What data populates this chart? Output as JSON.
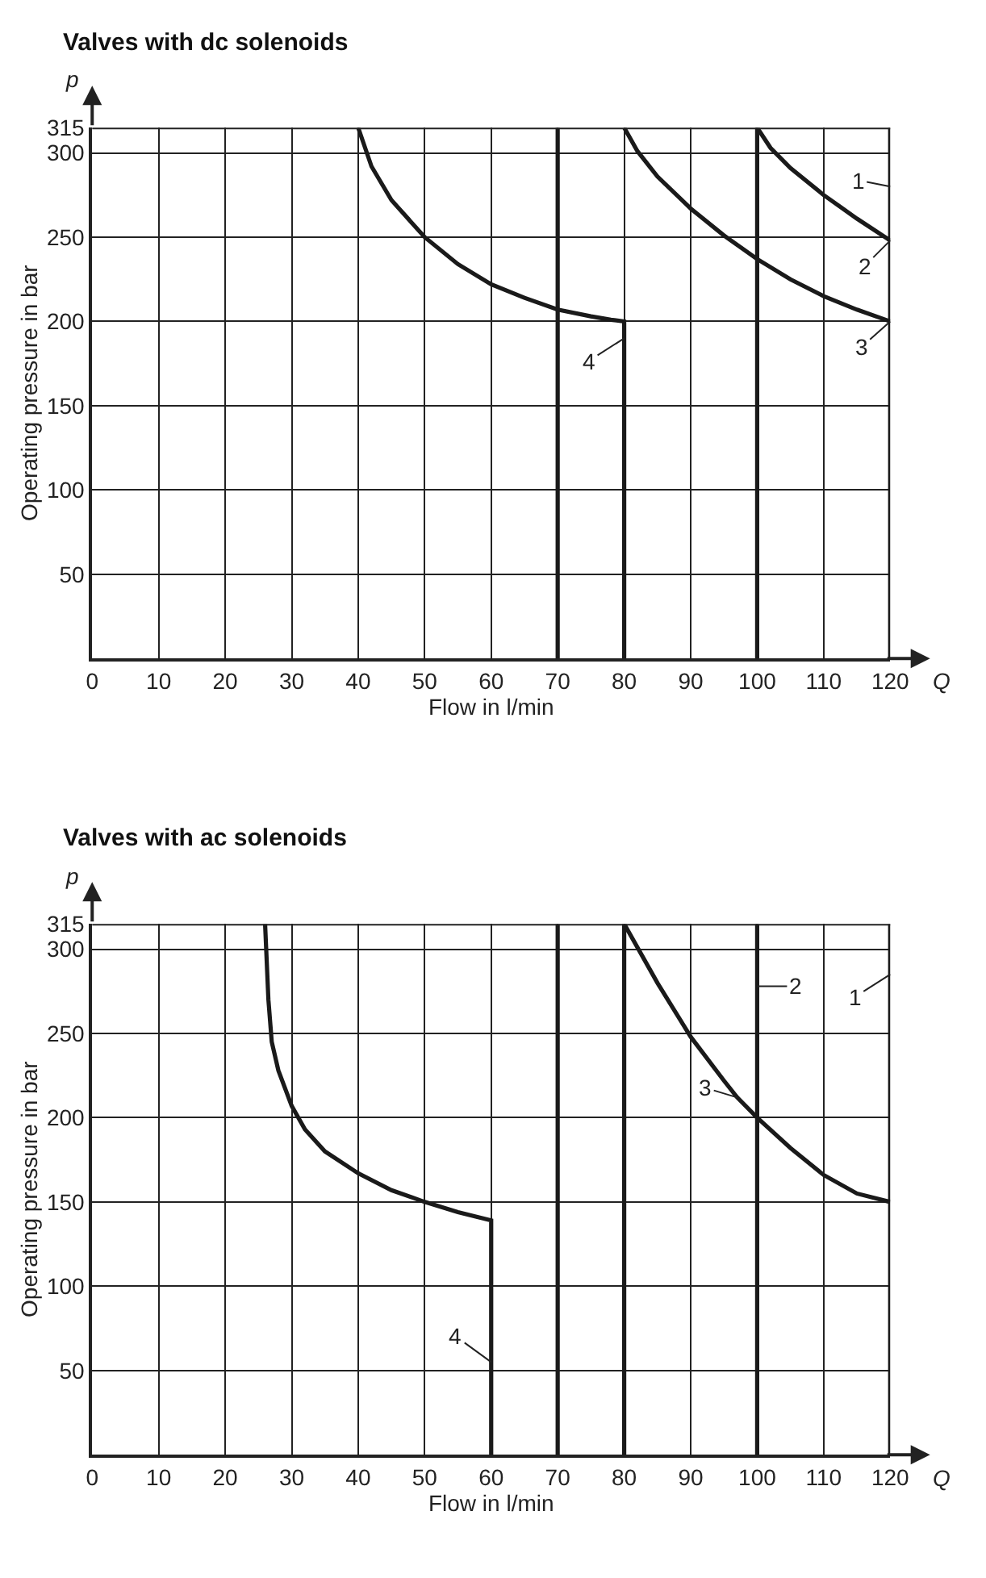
{
  "chart_data": [
    {
      "type": "line",
      "title": "Valves with dc solenoids",
      "xlabel": "Flow in l/min",
      "ylabel": "Operating pressure in bar",
      "series": [
        {
          "color": "#1a1a1a",
          "x": [
            80,
            80,
            80,
            80,
            78,
            75,
            70,
            65,
            60,
            55,
            50,
            45,
            42,
            40
          ],
          "values": [
            0,
            100,
            190,
            200,
            201,
            203,
            207,
            214,
            222,
            234,
            250,
            272,
            292,
            315
          ]
        },
        {
          "color": "#1a1a1a",
          "x": [
            70,
            70,
            70
          ],
          "values": [
            0,
            150,
            315
          ]
        },
        {
          "color": "#1a1a1a",
          "x": [
            80,
            82,
            85,
            90,
            95,
            100,
            105,
            110,
            115,
            120
          ],
          "values": [
            315,
            301,
            286,
            267,
            251,
            237,
            225,
            215,
            207,
            200
          ]
        },
        {
          "color": "#1a1a1a",
          "x": [
            100,
            100,
            100,
            102,
            105,
            110,
            115,
            120
          ],
          "values": [
            0,
            150,
            315,
            303,
            291,
            275,
            261,
            248
          ]
        },
        {
          "color": "#1a1a1a",
          "x": [
            120,
            120,
            120,
            120
          ],
          "values": [
            0,
            150,
            280,
            315
          ]
        }
      ],
      "annotations": [
        "p",
        "Q",
        {
          "text": "1",
          "x": 120,
          "y": 280
        },
        {
          "text": "2",
          "x": 120,
          "y": 248
        },
        {
          "text": "3",
          "x": 120,
          "y": 200
        },
        {
          "text": "4",
          "x": 80,
          "y": 190
        }
      ],
      "xlim": [
        0,
        120
      ],
      "ylim": [
        0,
        315
      ],
      "xticks": [
        0,
        10,
        20,
        30,
        40,
        50,
        60,
        70,
        80,
        90,
        100,
        110,
        120
      ],
      "yticks": [
        50,
        100,
        150,
        200,
        250,
        300,
        315
      ],
      "grid": true,
      "marker": "none",
      "line_style": "solid"
    },
    {
      "type": "line",
      "title": "Valves with ac solenoids",
      "xlabel": "Flow in l/min",
      "ylabel": "Operating pressure in bar",
      "series": [
        {
          "color": "#1a1a1a",
          "x": [
            26,
            26.5,
            27,
            28,
            30,
            32,
            35,
            40,
            45,
            50,
            55,
            60,
            60,
            60,
            60
          ],
          "values": [
            315,
            270,
            245,
            228,
            207,
            193,
            180,
            167,
            157,
            150,
            144,
            139,
            100,
            55,
            0
          ]
        },
        {
          "color": "#1a1a1a",
          "x": [
            70,
            70,
            70
          ],
          "values": [
            0,
            150,
            315
          ]
        },
        {
          "color": "#1a1a1a",
          "x": [
            80,
            80,
            80,
            85,
            90,
            95,
            97,
            100,
            105,
            110,
            115,
            120
          ],
          "values": [
            0,
            150,
            315,
            280,
            248,
            222,
            212,
            200,
            182,
            166,
            155,
            150
          ]
        },
        {
          "color": "#1a1a1a",
          "x": [
            100,
            100,
            100,
            100
          ],
          "values": [
            0,
            150,
            278,
            315
          ]
        },
        {
          "color": "#1a1a1a",
          "x": [
            120,
            120,
            120,
            120
          ],
          "values": [
            0,
            150,
            285,
            315
          ]
        }
      ],
      "annotations": [
        "p",
        "Q",
        {
          "text": "1",
          "x": 120,
          "y": 285
        },
        {
          "text": "2",
          "x": 100,
          "y": 278
        },
        {
          "text": "3",
          "x": 97,
          "y": 212
        },
        {
          "text": "4",
          "x": 60,
          "y": 55
        }
      ],
      "xlim": [
        0,
        120
      ],
      "ylim": [
        0,
        315
      ],
      "xticks": [
        0,
        10,
        20,
        30,
        40,
        50,
        60,
        70,
        80,
        90,
        100,
        110,
        120
      ],
      "yticks": [
        50,
        100,
        150,
        200,
        250,
        300,
        315
      ],
      "grid": true,
      "marker": "none",
      "line_style": "solid"
    }
  ]
}
